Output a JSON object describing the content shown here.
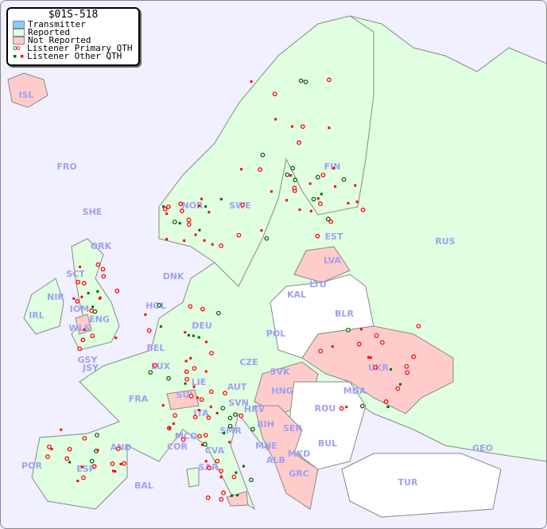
{
  "legend": {
    "title": "$01S-518",
    "items": [
      {
        "label": "Transmitter",
        "color": "#88ccff"
      },
      {
        "label": "Reported",
        "color": "#e0ffe0"
      },
      {
        "label": "Not Reported",
        "color": "#ffcccc"
      },
      {
        "label": "Listener Primary QTH",
        "colors": [
          "#006600",
          "#ff0000"
        ]
      },
      {
        "label": "Listener Other QTH",
        "colors": [
          "#006600",
          "#ff0000"
        ]
      }
    ]
  },
  "colors": {
    "sea": "#f0f0ff",
    "reported": "#e0ffe0",
    "not_reported": "#ffcccc",
    "no_data": "#ffffff",
    "label": "#a0a0f0"
  },
  "countries": [
    "ISL",
    "FRO",
    "SHE",
    "ORK",
    "NOR",
    "SWE",
    "FIN",
    "EST",
    "RUS",
    "LVA",
    "LTU",
    "KAL",
    "BLR",
    "DNK",
    "SCT",
    "NIR",
    "IRL",
    "IOM",
    "WLS",
    "ENG",
    "HOL",
    "BEL",
    "LUX",
    "DEU",
    "POL",
    "CZE",
    "SVK",
    "UKR",
    "MDA",
    "HNG",
    "AUT",
    "LIE",
    "SUI",
    "FRA",
    "GSY",
    "JSY",
    "ROU",
    "SVN",
    "HRV",
    "BIH",
    "SER",
    "BUL",
    "MNE",
    "ALB",
    "MKD",
    "GRC",
    "TUR",
    "GEO",
    "ITA",
    "SMR",
    "MCO",
    "COR",
    "CVA",
    "SAR",
    "AND",
    "ESP",
    "POR",
    "BAL"
  ]
}
